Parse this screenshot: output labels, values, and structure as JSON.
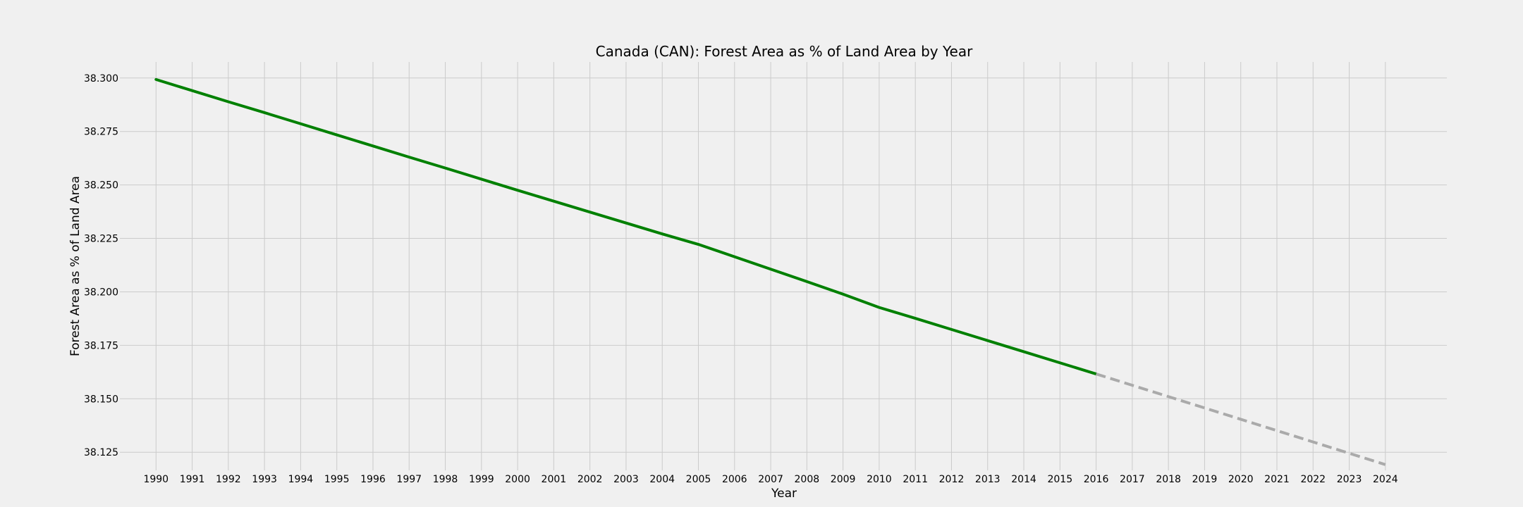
{
  "chart_data": {
    "type": "line",
    "title": "Canada (CAN): Forest Area as % of Land Area by Year",
    "xlabel": "Year",
    "ylabel": "Forest Area as % of Land Area",
    "grid": true,
    "xlim": [
      1989,
      2025.7
    ],
    "ylim": [
      38.1165,
      38.3075
    ],
    "x_ticks": [
      1990,
      1991,
      1992,
      1993,
      1994,
      1995,
      1996,
      1997,
      1998,
      1999,
      2000,
      2001,
      2002,
      2003,
      2004,
      2005,
      2006,
      2007,
      2008,
      2009,
      2010,
      2011,
      2012,
      2013,
      2014,
      2015,
      2016,
      2017,
      2018,
      2019,
      2020,
      2021,
      2022,
      2023,
      2024
    ],
    "y_ticks": [
      38.125,
      38.15,
      38.175,
      38.2,
      38.225,
      38.25,
      38.275,
      38.3
    ],
    "y_tick_labels": [
      "38.125",
      "38.150",
      "38.175",
      "38.200",
      "38.225",
      "38.250",
      "38.275",
      "38.300"
    ],
    "series": [
      {
        "style": "solid",
        "color": "#008000",
        "x": [
          1990,
          1991,
          1992,
          1993,
          1994,
          1995,
          1996,
          1997,
          1998,
          1999,
          2000,
          2001,
          2002,
          2003,
          2004,
          2005,
          2006,
          2007,
          2008,
          2009,
          2010,
          2011,
          2012,
          2013,
          2014,
          2015,
          2016
        ],
        "values": [
          38.2993,
          38.2941,
          38.2889,
          38.2838,
          38.2786,
          38.2734,
          38.2682,
          38.263,
          38.2579,
          38.2527,
          38.2475,
          38.2424,
          38.2373,
          38.2322,
          38.2271,
          38.2222,
          38.2164,
          38.2106,
          38.2048,
          38.1989,
          38.1927,
          38.1876,
          38.1824,
          38.1772,
          38.172,
          38.1668,
          38.1616
        ]
      },
      {
        "style": "dashed",
        "color": "#aaaaaa",
        "x": [
          2016,
          2017,
          2018,
          2019,
          2020,
          2021,
          2022,
          2023,
          2024
        ],
        "values": [
          38.1616,
          38.1563,
          38.151,
          38.1457,
          38.1404,
          38.1351,
          38.1298,
          38.1245,
          38.1192
        ]
      }
    ]
  }
}
